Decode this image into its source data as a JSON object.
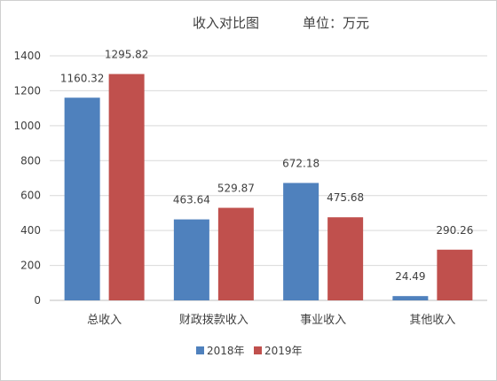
{
  "chart_data": {
    "type": "bar",
    "title": "收入对比图",
    "unit_label": "单位：万元",
    "categories": [
      "总收入",
      "财政拨款收入",
      "事业收入",
      "其他收入"
    ],
    "series": [
      {
        "name": "2018年",
        "color": "#4f81bd",
        "values": [
          1160.32,
          463.64,
          672.18,
          24.49
        ]
      },
      {
        "name": "2019年",
        "color": "#c0504d",
        "values": [
          1295.82,
          529.87,
          475.68,
          290.26
        ]
      }
    ],
    "ylim": [
      0,
      1400
    ],
    "yticks": [
      0,
      200,
      400,
      600,
      800,
      1000,
      1200,
      1400
    ],
    "grid": true,
    "legend_position": "bottom"
  }
}
